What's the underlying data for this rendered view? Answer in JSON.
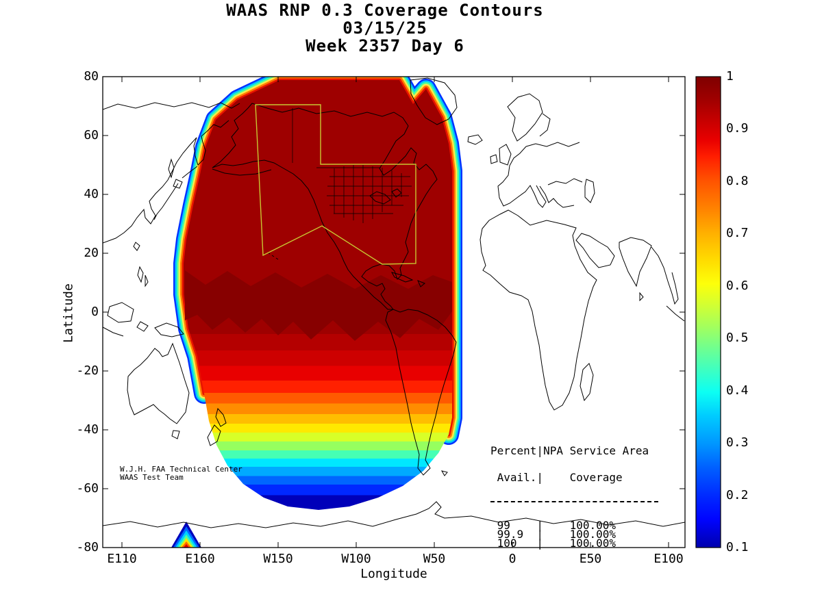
{
  "title": {
    "line1": "WAAS RNP 0.3 Coverage Contours",
    "line2": "03/15/25",
    "line3": "Week 2357 Day 6"
  },
  "axes": {
    "x_label": "Longitude",
    "y_label": "Latitude",
    "x_ticks": [
      "E110",
      "E160",
      "W150",
      "W100",
      "W50",
      "0",
      "E50",
      "E100"
    ],
    "y_ticks": [
      "80",
      "60",
      "40",
      "20",
      "0",
      "-20",
      "-40",
      "-60",
      "-80"
    ]
  },
  "colorbar": {
    "tick_labels": [
      "1",
      "0.9",
      "0.8",
      "0.7",
      "0.6",
      "0.5",
      "0.4",
      "0.3",
      "0.2",
      "0.1"
    ],
    "min": 0.1,
    "max": 1
  },
  "annotations": {
    "credit_line1": "W.J.H. FAA Technical Center",
    "credit_line2": "WAAS Test Team"
  },
  "coverage_table": {
    "header1": "Percent|NPA Service Area",
    "header2": " Avail.|    Coverage",
    "rows": [
      " 99    |    100.00%",
      " 99.9  |    100.00%",
      " 100   |    100.00%"
    ]
  },
  "palette": {
    "background": "#ffffff",
    "coastline": "#000000",
    "service_area_color": "#c8c832",
    "patch_color": "#870000",
    "blob_top_color": "#9e0000",
    "rim_colors": [
      "#0032ff",
      "#00c8ff",
      "#49ff9b",
      "#ffe94a",
      "#ff7a00",
      "#e81400"
    ],
    "rim_widths": [
      30,
      25,
      20,
      15,
      10,
      5
    ],
    "triangle_colors": [
      "#0000bb",
      "#0064ff",
      "#00d2ff",
      "#50ff9e",
      "#ffe400",
      "#ff6a00",
      "#e00000"
    ],
    "triangle_half_widths": [
      22,
      19,
      16,
      13,
      10,
      7,
      4
    ],
    "triangle_heights": [
      38,
      31,
      25,
      19,
      14,
      9,
      5
    ],
    "blob_gradient_stops": [
      [
        0,
        "#9e0000"
      ],
      [
        0.589,
        "#9e0000"
      ],
      [
        0.589,
        "#b40000"
      ],
      [
        0.627,
        "#b40000"
      ],
      [
        0.627,
        "#cd0000"
      ],
      [
        0.663,
        "#cd0000"
      ],
      [
        0.663,
        "#e80000"
      ],
      [
        0.697,
        "#e80000"
      ],
      [
        0.697,
        "#ff2000"
      ],
      [
        0.725,
        "#ff2000"
      ],
      [
        0.725,
        "#ff5a00"
      ],
      [
        0.75,
        "#ff5a00"
      ],
      [
        0.75,
        "#ff8c00"
      ],
      [
        0.774,
        "#ff8c00"
      ],
      [
        0.774,
        "#ffbe00"
      ],
      [
        0.796,
        "#ffbe00"
      ],
      [
        0.796,
        "#ffe900"
      ],
      [
        0.817,
        "#ffe900"
      ],
      [
        0.817,
        "#d8ff28"
      ],
      [
        0.837,
        "#d8ff28"
      ],
      [
        0.837,
        "#96ff5f"
      ],
      [
        0.858,
        "#96ff5f"
      ],
      [
        0.858,
        "#46ffb4"
      ],
      [
        0.877,
        "#46ffb4"
      ],
      [
        0.877,
        "#00e8ff"
      ],
      [
        0.896,
        "#00e8ff"
      ],
      [
        0.896,
        "#00aaff"
      ],
      [
        0.917,
        "#00aaff"
      ],
      [
        0.917,
        "#0066ff"
      ],
      [
        0.937,
        "#0066ff"
      ],
      [
        0.937,
        "#0028ff"
      ],
      [
        0.961,
        "#0028ff"
      ],
      [
        0.961,
        "#0000b9"
      ],
      [
        1,
        "#0000b9"
      ]
    ],
    "colorbar_gradient_stops": [
      [
        0,
        "#7f0000"
      ],
      [
        0.045,
        "#9d0000"
      ],
      [
        0.09,
        "#c30000"
      ],
      [
        0.135,
        "#e90000"
      ],
      [
        0.17,
        "#ff1e00"
      ],
      [
        0.22,
        "#ff5200"
      ],
      [
        0.28,
        "#ff8200"
      ],
      [
        0.33,
        "#ffae00"
      ],
      [
        0.39,
        "#ffdc00"
      ],
      [
        0.44,
        "#fdff0a"
      ],
      [
        0.48,
        "#d7ff2e"
      ],
      [
        0.53,
        "#a4ff5c"
      ],
      [
        0.58,
        "#6cff93"
      ],
      [
        0.63,
        "#36ffc9"
      ],
      [
        0.67,
        "#0cfff3"
      ],
      [
        0.72,
        "#00ccff"
      ],
      [
        0.78,
        "#0096ff"
      ],
      [
        0.83,
        "#0060ff"
      ],
      [
        0.89,
        "#002aff"
      ],
      [
        0.94,
        "#0004ff"
      ],
      [
        1,
        "#0000ad"
      ]
    ]
  },
  "chart_data": {
    "type": "heatmap",
    "title": "WAAS RNP 0.3 Coverage Contours",
    "date": "03/15/25",
    "gps_week": "2357",
    "gps_day": "6",
    "xlabel": "Longitude",
    "ylabel": "Latitude",
    "x_ticks": [
      "E110",
      "E160",
      "W150",
      "W100",
      "W50",
      "0",
      "E50",
      "E100"
    ],
    "y_ticks": [
      80,
      60,
      40,
      20,
      0,
      -20,
      -40,
      -60,
      -80
    ],
    "grid": false,
    "legend_position": "right colorbar",
    "colorbar": {
      "label_values": [
        1,
        0.9,
        0.8,
        0.7,
        0.6,
        0.5,
        0.4,
        0.3,
        0.2,
        0.1
      ],
      "range": [
        0.1,
        1
      ],
      "colormap": "jet"
    },
    "coverage_region": {
      "description": "Filled availability contour region covering North America, the eastern Pacific and western Atlantic; availability 1.0 (dark red) over nearly all of North America, decreasing southward to 0.1 (dark blue) near 68S",
      "lon_extent": [
        "E160",
        "W45"
      ],
      "lat_extent": [
        -68,
        78
      ]
    },
    "contour_band_boundaries": [
      {
        "level": 0.95,
        "lat": -8
      },
      {
        "level": 0.9,
        "lat": -14
      },
      {
        "level": 0.85,
        "lat": -18
      },
      {
        "level": 0.8,
        "lat": -22
      },
      {
        "level": 0.75,
        "lat": -26
      },
      {
        "level": 0.7,
        "lat": -29
      },
      {
        "level": 0.65,
        "lat": -32
      },
      {
        "level": 0.6,
        "lat": -35
      },
      {
        "level": 0.55,
        "lat": -38
      },
      {
        "level": 0.5,
        "lat": -41
      },
      {
        "level": 0.45,
        "lat": -44
      },
      {
        "level": 0.4,
        "lat": -47
      },
      {
        "level": 0.35,
        "lat": -50
      },
      {
        "level": 0.3,
        "lat": -53
      },
      {
        "level": 0.25,
        "lat": -56
      },
      {
        "level": 0.2,
        "lat": -59
      },
      {
        "level": 0.15,
        "lat": -62
      },
      {
        "level": 0.1,
        "lat": -67
      }
    ],
    "npa_service_area_table": {
      "percent_avail": [
        "99",
        "99.9",
        "100"
      ],
      "coverage": [
        "100.00%",
        "100.00%",
        "100.00%"
      ]
    }
  }
}
